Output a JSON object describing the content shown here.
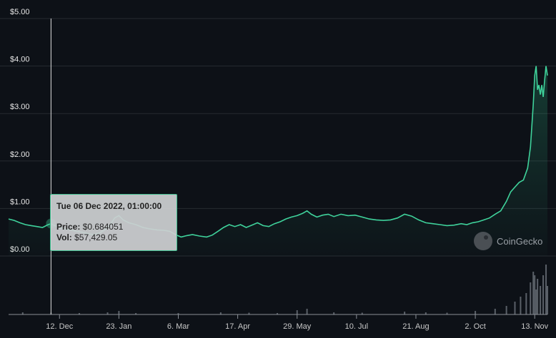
{
  "chart_data": {
    "type": "area",
    "y_ticks": [
      "$5.00",
      "$4.00",
      "$3.00",
      "$2.00",
      "$1.00",
      "$0.00"
    ],
    "y_values": [
      5,
      4,
      3,
      2,
      1,
      0
    ],
    "ylim": [
      0,
      5
    ],
    "x_ticks": [
      "12. Dec",
      "23. Jan",
      "6. Mar",
      "17. Apr",
      "29. May",
      "10. Jul",
      "21. Aug",
      "2. Oct",
      "13. Nov"
    ],
    "x_tick_days": [
      6,
      48,
      90,
      132,
      174,
      216,
      258,
      300,
      342
    ],
    "xlim_days": [
      -30,
      352
    ],
    "grid": "horizontal",
    "line_color": "#3fd29b",
    "price_series": [
      [
        -30,
        0.78
      ],
      [
        -26,
        0.75
      ],
      [
        -22,
        0.7
      ],
      [
        -18,
        0.66
      ],
      [
        -14,
        0.64
      ],
      [
        -10,
        0.62
      ],
      [
        -6,
        0.6
      ],
      [
        -2,
        0.66
      ],
      [
        0,
        0.68
      ],
      [
        2,
        0.65
      ],
      [
        6,
        0.6
      ],
      [
        10,
        0.57
      ],
      [
        14,
        0.55
      ],
      [
        18,
        0.52
      ],
      [
        22,
        0.5
      ],
      [
        26,
        0.47
      ],
      [
        30,
        0.45
      ],
      [
        34,
        0.48
      ],
      [
        38,
        0.55
      ],
      [
        42,
        0.66
      ],
      [
        45,
        0.8
      ],
      [
        48,
        0.85
      ],
      [
        51,
        0.76
      ],
      [
        55,
        0.7
      ],
      [
        60,
        0.66
      ],
      [
        65,
        0.6
      ],
      [
        70,
        0.57
      ],
      [
        75,
        0.55
      ],
      [
        80,
        0.54
      ],
      [
        84,
        0.52
      ],
      [
        88,
        0.45
      ],
      [
        92,
        0.4
      ],
      [
        96,
        0.43
      ],
      [
        100,
        0.45
      ],
      [
        105,
        0.42
      ],
      [
        110,
        0.4
      ],
      [
        114,
        0.44
      ],
      [
        118,
        0.52
      ],
      [
        122,
        0.6
      ],
      [
        126,
        0.66
      ],
      [
        130,
        0.62
      ],
      [
        134,
        0.66
      ],
      [
        138,
        0.6
      ],
      [
        142,
        0.65
      ],
      [
        146,
        0.7
      ],
      [
        150,
        0.64
      ],
      [
        154,
        0.62
      ],
      [
        158,
        0.68
      ],
      [
        162,
        0.72
      ],
      [
        166,
        0.78
      ],
      [
        170,
        0.82
      ],
      [
        174,
        0.85
      ],
      [
        178,
        0.9
      ],
      [
        181,
        0.95
      ],
      [
        184,
        0.88
      ],
      [
        188,
        0.82
      ],
      [
        192,
        0.86
      ],
      [
        196,
        0.88
      ],
      [
        200,
        0.83
      ],
      [
        205,
        0.88
      ],
      [
        210,
        0.85
      ],
      [
        215,
        0.86
      ],
      [
        220,
        0.82
      ],
      [
        225,
        0.78
      ],
      [
        230,
        0.76
      ],
      [
        235,
        0.75
      ],
      [
        240,
        0.76
      ],
      [
        245,
        0.8
      ],
      [
        250,
        0.88
      ],
      [
        255,
        0.84
      ],
      [
        260,
        0.76
      ],
      [
        265,
        0.7
      ],
      [
        270,
        0.68
      ],
      [
        275,
        0.66
      ],
      [
        280,
        0.64
      ],
      [
        285,
        0.65
      ],
      [
        290,
        0.68
      ],
      [
        294,
        0.66
      ],
      [
        298,
        0.7
      ],
      [
        302,
        0.72
      ],
      [
        306,
        0.76
      ],
      [
        310,
        0.8
      ],
      [
        314,
        0.88
      ],
      [
        318,
        0.95
      ],
      [
        322,
        1.15
      ],
      [
        325,
        1.35
      ],
      [
        328,
        1.45
      ],
      [
        331,
        1.55
      ],
      [
        334,
        1.6
      ],
      [
        337,
        1.85
      ],
      [
        339,
        2.3
      ],
      [
        341,
        3.2
      ],
      [
        342,
        3.8
      ],
      [
        343,
        4.0
      ],
      [
        344,
        3.5
      ],
      [
        345,
        3.6
      ],
      [
        346,
        3.4
      ],
      [
        347,
        3.6
      ],
      [
        348,
        3.35
      ],
      [
        349,
        3.7
      ],
      [
        350,
        4.0
      ],
      [
        351,
        3.8
      ]
    ],
    "volume_series": [
      [
        -20,
        0.03
      ],
      [
        0,
        0.025
      ],
      [
        20,
        0.02
      ],
      [
        40,
        0.03
      ],
      [
        48,
        0.05
      ],
      [
        60,
        0.02
      ],
      [
        90,
        0.02
      ],
      [
        120,
        0.03
      ],
      [
        140,
        0.025
      ],
      [
        160,
        0.02
      ],
      [
        174,
        0.06
      ],
      [
        181,
        0.08
      ],
      [
        200,
        0.03
      ],
      [
        220,
        0.025
      ],
      [
        250,
        0.04
      ],
      [
        265,
        0.03
      ],
      [
        280,
        0.025
      ],
      [
        300,
        0.05
      ],
      [
        314,
        0.08
      ],
      [
        322,
        0.12
      ],
      [
        328,
        0.18
      ],
      [
        332,
        0.25
      ],
      [
        336,
        0.3
      ],
      [
        339,
        0.45
      ],
      [
        341,
        0.6
      ],
      [
        342,
        0.55
      ],
      [
        343,
        0.35
      ],
      [
        344,
        0.5
      ],
      [
        346,
        0.4
      ],
      [
        348,
        0.55
      ],
      [
        350,
        0.7
      ],
      [
        351,
        0.4
      ]
    ],
    "marker_day": 0,
    "marker_price": 0.684051
  },
  "tooltip": {
    "date": "Tue 06 Dec 2022, 01:00:00",
    "price_label": "Price:",
    "price_value": "$0.684051",
    "vol_label": "Vol:",
    "vol_value": "$57,429.05"
  },
  "watermark": "CoinGecko"
}
